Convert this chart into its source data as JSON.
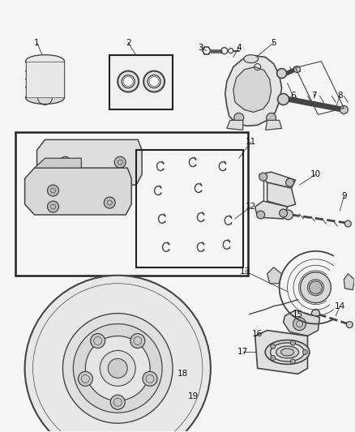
{
  "bg_color": "#f5f5f5",
  "line_color": "#444444",
  "dark_color": "#222222",
  "figsize": [
    4.38,
    5.33
  ],
  "dpi": 100,
  "xlim": [
    0,
    438
  ],
  "ylim": [
    0,
    533
  ]
}
